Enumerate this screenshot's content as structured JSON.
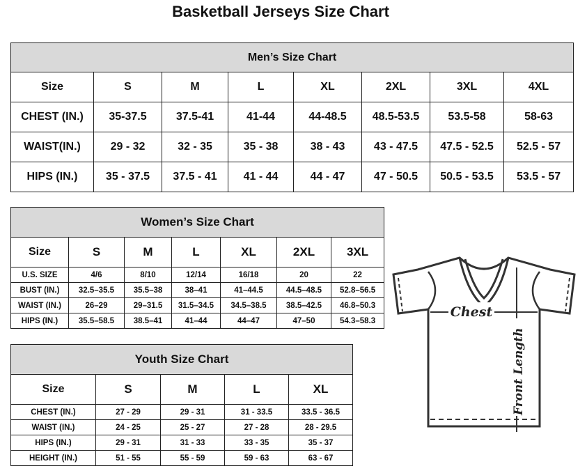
{
  "title": "Basketball Jerseys Size Chart",
  "men": {
    "title": "Men’s Size Chart",
    "rows": [
      [
        "Size",
        "S",
        "M",
        "L",
        "XL",
        "2XL",
        "3XL",
        "4XL"
      ],
      [
        "CHEST (IN.)",
        "35-37.5",
        "37.5-41",
        "41-44",
        "44-48.5",
        "48.5-53.5",
        "53.5-58",
        "58-63"
      ],
      [
        "WAIST(IN.)",
        "29 - 32",
        "32 - 35",
        "35 - 38",
        "38 - 43",
        "43 - 47.5",
        "47.5 - 52.5",
        "52.5 - 57"
      ],
      [
        "HIPS (IN.)",
        "35 - 37.5",
        "37.5 - 41",
        "41 - 44",
        "44 - 47",
        "47 - 50.5",
        "50.5 - 53.5",
        "53.5 - 57"
      ]
    ]
  },
  "women": {
    "title": "Women’s Size Chart",
    "rows": [
      [
        "Size",
        "S",
        "M",
        "L",
        "XL",
        "2XL",
        "3XL"
      ],
      [
        "U.S. SIZE",
        "4/6",
        "8/10",
        "12/14",
        "16/18",
        "20",
        "22"
      ],
      [
        "BUST (IN.)",
        "32.5–35.5",
        "35.5–38",
        "38–41",
        "41–44.5",
        "44.5–48.5",
        "52.8–56.5"
      ],
      [
        "WAIST (IN.)",
        "26–29",
        "29–31.5",
        "31.5–34.5",
        "34.5–38.5",
        "38.5–42.5",
        "46.8–50.3"
      ],
      [
        "HIPS (IN.)",
        "35.5–58.5",
        "38.5–41",
        "41–44",
        "44–47",
        "47–50",
        "54.3–58.3"
      ]
    ]
  },
  "youth": {
    "title": "Youth Size Chart",
    "rows": [
      [
        "Size",
        "S",
        "M",
        "L",
        "XL"
      ],
      [
        "CHEST (IN.)",
        "27 - 29",
        "29 - 31",
        "31 - 33.5",
        "33.5 - 36.5"
      ],
      [
        "WAIST (IN.)",
        "24 - 25",
        "25 - 27",
        "27 - 28",
        "28 - 29.5"
      ],
      [
        "HIPS (IN.)",
        "29 - 31",
        "31 - 33",
        "33 - 35",
        "35 - 37"
      ],
      [
        "HEIGHT (IN.)",
        "51 - 55",
        "55 - 59",
        "59 - 63",
        "63 - 67"
      ]
    ]
  },
  "diagram": {
    "chest_label": "Chest",
    "length_label": "Front Length"
  }
}
